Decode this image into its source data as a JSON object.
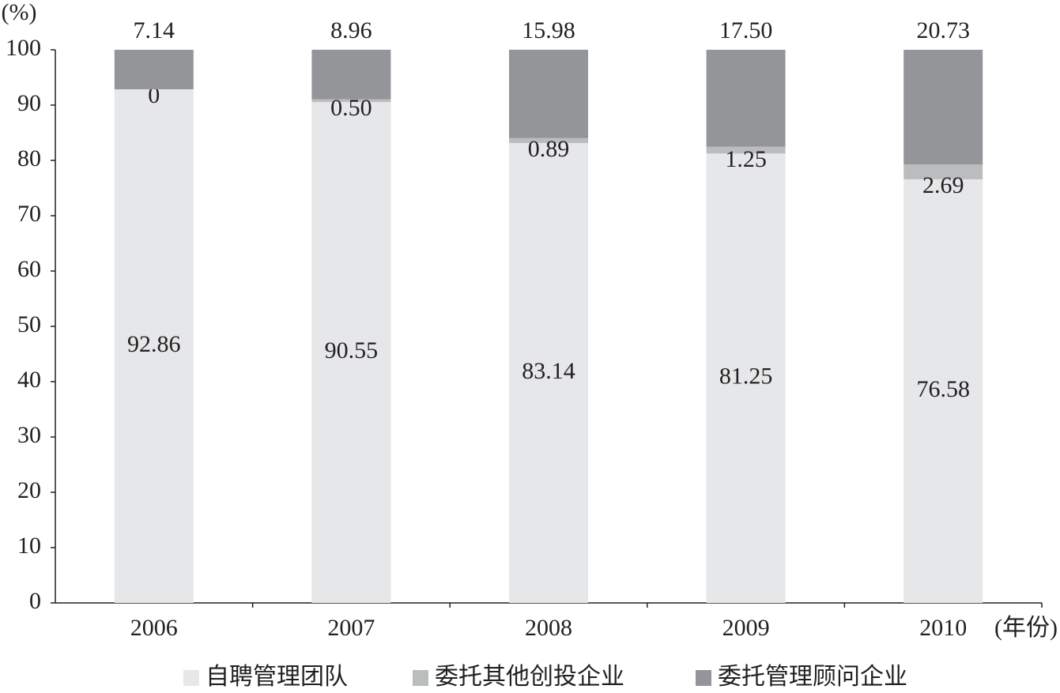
{
  "chart_data": {
    "type": "stacked_bar",
    "y_label": "(%)",
    "x_label": "(年份)",
    "categories": [
      "2006",
      "2007",
      "2008",
      "2009",
      "2010"
    ],
    "series": [
      {
        "name": "自聘管理团队",
        "color": "#e6e7e9",
        "values": [
          92.86,
          90.55,
          83.14,
          81.25,
          76.58
        ],
        "value_labels": [
          "92.86",
          "90.55",
          "83.14",
          "81.25",
          "76.58"
        ]
      },
      {
        "name": "委托其他创投企业",
        "color": "#bbbcbe",
        "values": [
          0,
          0.5,
          0.89,
          1.25,
          2.69
        ],
        "value_labels": [
          "0",
          "0.50",
          "0.89",
          "1.25",
          "2.69"
        ]
      },
      {
        "name": "委托管理顾问企业",
        "color": "#939598",
        "values": [
          7.14,
          8.96,
          15.98,
          17.5,
          20.73
        ],
        "value_labels": [
          "7.14",
          "8.96",
          "15.98",
          "17.50",
          "20.73"
        ]
      }
    ],
    "ylim": [
      0,
      100
    ],
    "yticks": [
      0,
      10,
      20,
      30,
      40,
      50,
      60,
      70,
      80,
      90,
      100
    ]
  }
}
